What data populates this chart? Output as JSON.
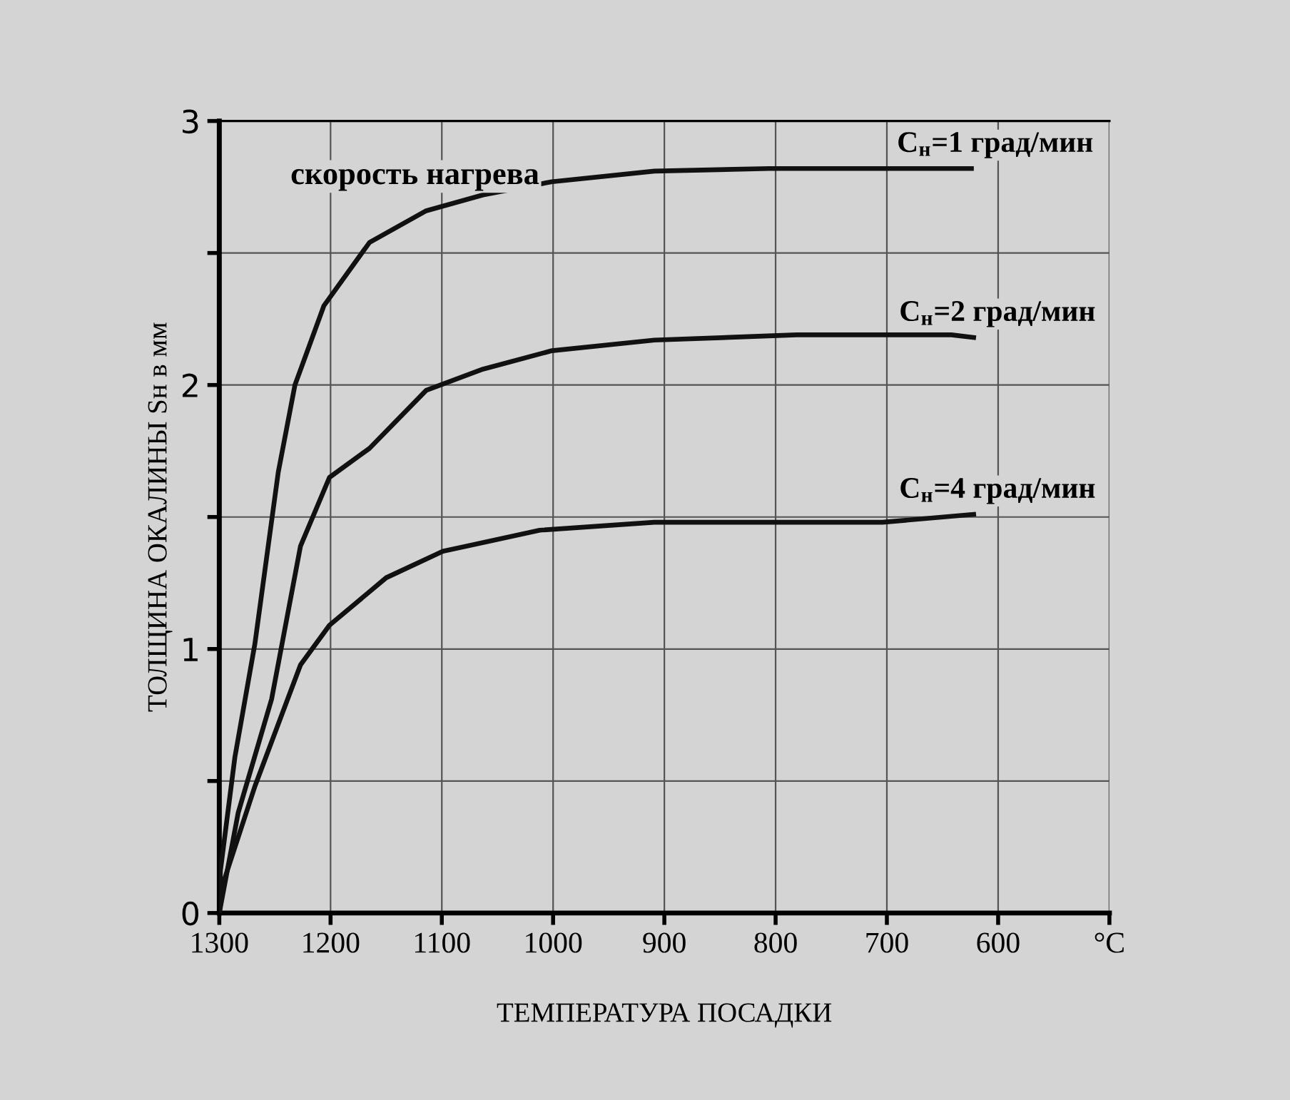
{
  "chart_data": {
    "type": "line",
    "xlabel": "ТЕМПЕРАТУРА ПОСАДКИ",
    "ylabel": "ТОЛЩИНА ОКАЛИНЫ Sн в мм",
    "annotations": [
      "скорость нагрева"
    ],
    "xlim": [
      1300,
      500
    ],
    "xticks": [
      1300,
      1200,
      1100,
      1000,
      900,
      800,
      700,
      600,
      {
        "value": 500,
        "label": "°C"
      }
    ],
    "ylim": [
      0,
      3
    ],
    "yticks": [
      0,
      {
        "value": 0.5,
        "label": null
      },
      1,
      {
        "value": 1.5,
        "label": null
      },
      2,
      {
        "value": 2.5,
        "label": null
      },
      3
    ],
    "grid": true,
    "legend": false,
    "marker": "none",
    "line_style": "solid",
    "series": [
      {
        "name": "С$_{н}$=1 град/мин",
        "color": "#111111",
        "x": [
          1300,
          1299,
          1286,
          1268,
          1247,
          1232,
          1206,
          1165,
          1114,
          1063,
          1001,
          909,
          806,
          700,
          624
        ],
        "values": [
          0,
          0.16,
          0.59,
          1.02,
          1.67,
          2.0,
          2.3,
          2.54,
          2.66,
          2.72,
          2.77,
          2.81,
          2.82,
          2.82,
          2.82
        ]
      },
      {
        "name": "С$_{н}$=2 град/мин",
        "color": "#111111",
        "x": [
          1300,
          1283,
          1253,
          1227,
          1201,
          1165,
          1114,
          1063,
          1001,
          909,
          781,
          642,
          622
        ],
        "values": [
          0,
          0.38,
          0.81,
          1.39,
          1.65,
          1.76,
          1.98,
          2.06,
          2.13,
          2.17,
          2.19,
          2.19,
          2.18
        ]
      },
      {
        "name": "С$_{н}$=4 град/мин",
        "color": "#111111",
        "x": [
          1300,
          1296,
          1268,
          1227,
          1201,
          1150,
          1099,
          1012,
          909,
          704,
          622
        ],
        "values": [
          0,
          0.12,
          0.48,
          0.94,
          1.09,
          1.27,
          1.37,
          1.45,
          1.48,
          1.48,
          1.51
        ]
      }
    ]
  }
}
